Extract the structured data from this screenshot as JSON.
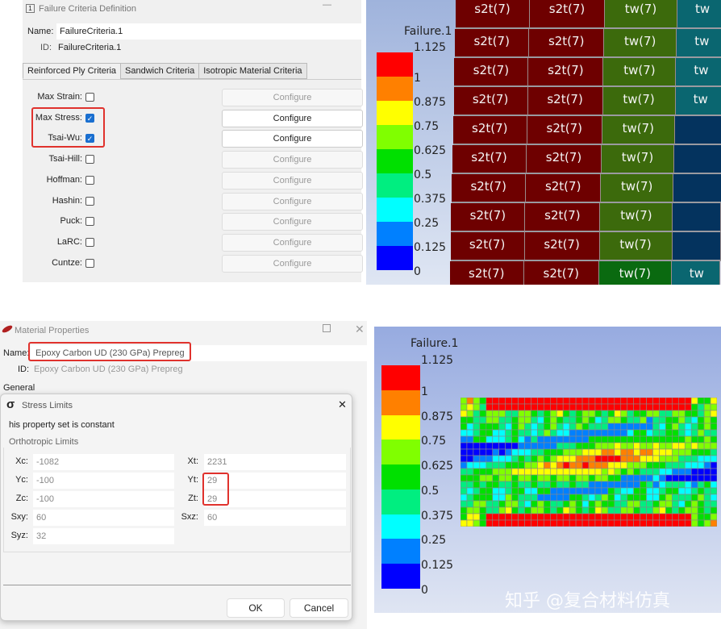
{
  "failure_window": {
    "title": "Failure Criteria Definition",
    "name_label": "Name:",
    "name_value": "FailureCriteria.1",
    "id_label": "ID:",
    "id_value": "FailureCriteria.1",
    "tabs": [
      "Reinforced Ply Criteria",
      "Sandwich Criteria",
      "Isotropic Material Criteria"
    ],
    "configure_label": "Configure",
    "criteria": [
      {
        "label": "Max Strain:",
        "checked": false
      },
      {
        "label": "Max Stress:",
        "checked": true
      },
      {
        "label": "Tsai-Wu:",
        "checked": true
      },
      {
        "label": "Tsai-Hill:",
        "checked": false
      },
      {
        "label": "Hoffman:",
        "checked": false
      },
      {
        "label": "Hashin:",
        "checked": false
      },
      {
        "label": "Puck:",
        "checked": false
      },
      {
        "label": "LaRC:",
        "checked": false
      },
      {
        "label": "Cuntze:",
        "checked": false
      }
    ]
  },
  "material_window": {
    "title": "Material Properties",
    "name_label": "Name:",
    "name_value": "Epoxy Carbon UD (230 GPa) Prepreg",
    "id_label": "ID:",
    "id_value": "Epoxy Carbon UD (230 GPa) Prepreg",
    "section": "General"
  },
  "stress_dialog": {
    "title": "Stress Limits",
    "icon": "sigma-icon",
    "note": "his property set is constant",
    "group": "Orthotropic Limits",
    "left_fields": [
      {
        "label": "Xc:",
        "value": "-1082"
      },
      {
        "label": "Yc:",
        "value": "-100"
      },
      {
        "label": "Zc:",
        "value": "-100"
      },
      {
        "label": "Sxy:",
        "value": "60"
      },
      {
        "label": "Syz:",
        "value": "32"
      }
    ],
    "right_fields": [
      {
        "label": "Xt:",
        "value": "2231"
      },
      {
        "label": "Yt:",
        "value": "29"
      },
      {
        "label": "Zt:",
        "value": "29"
      },
      {
        "label": "Sxz:",
        "value": "60"
      }
    ],
    "ok": "OK",
    "cancel": "Cancel"
  },
  "legend": {
    "title": "Failure.1",
    "ticks": [
      "1.125",
      "1",
      "0.875",
      "0.75",
      "0.625",
      "0.5",
      "0.375",
      "0.25",
      "0.125",
      "0"
    ],
    "colors": [
      "#ff0000",
      "#ff8000",
      "#ffff00",
      "#80ff00",
      "#00e000",
      "#00ee80",
      "#00ffff",
      "#0080ff",
      "#0000ff"
    ]
  },
  "ply_grid": {
    "col_labels": [
      "s2t(7)",
      "s2t(7)",
      "tw(7)",
      "tw"
    ],
    "colors": {
      "s2t": "#6e0000",
      "tw": "#3c6a0c",
      "teal": "#0a6670",
      "navy": "#04335e"
    }
  },
  "watermark": "知乎 @复合材料仿真"
}
